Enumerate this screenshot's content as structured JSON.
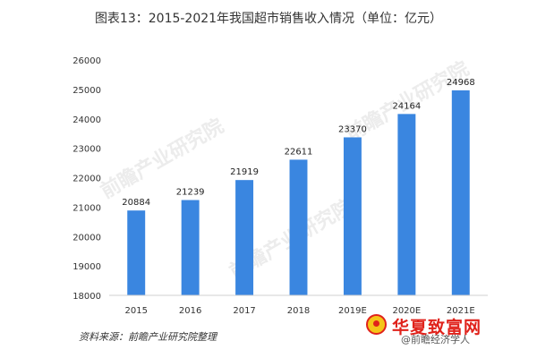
{
  "chart_data": {
    "type": "bar",
    "title": "图表13：2015-2021年我国超市销售收入情况（单位：亿元）",
    "categories": [
      "2015",
      "2016",
      "2017",
      "2018",
      "2019E",
      "2020E",
      "2021E"
    ],
    "values": [
      20884,
      21239,
      21919,
      22611,
      23370,
      24164,
      24968
    ],
    "xlabel": "",
    "ylabel": "",
    "ylim": [
      18000,
      26000
    ],
    "yticks": [
      18000,
      19000,
      20000,
      21000,
      22000,
      23000,
      24000,
      25000,
      26000
    ],
    "grid": false,
    "bar_color": "#3a86e0"
  },
  "source_note": "资料来源：前瞻产业研究院整理",
  "watermark": {
    "brand": "华夏致富网",
    "credit": "@前瞻经济学人"
  }
}
